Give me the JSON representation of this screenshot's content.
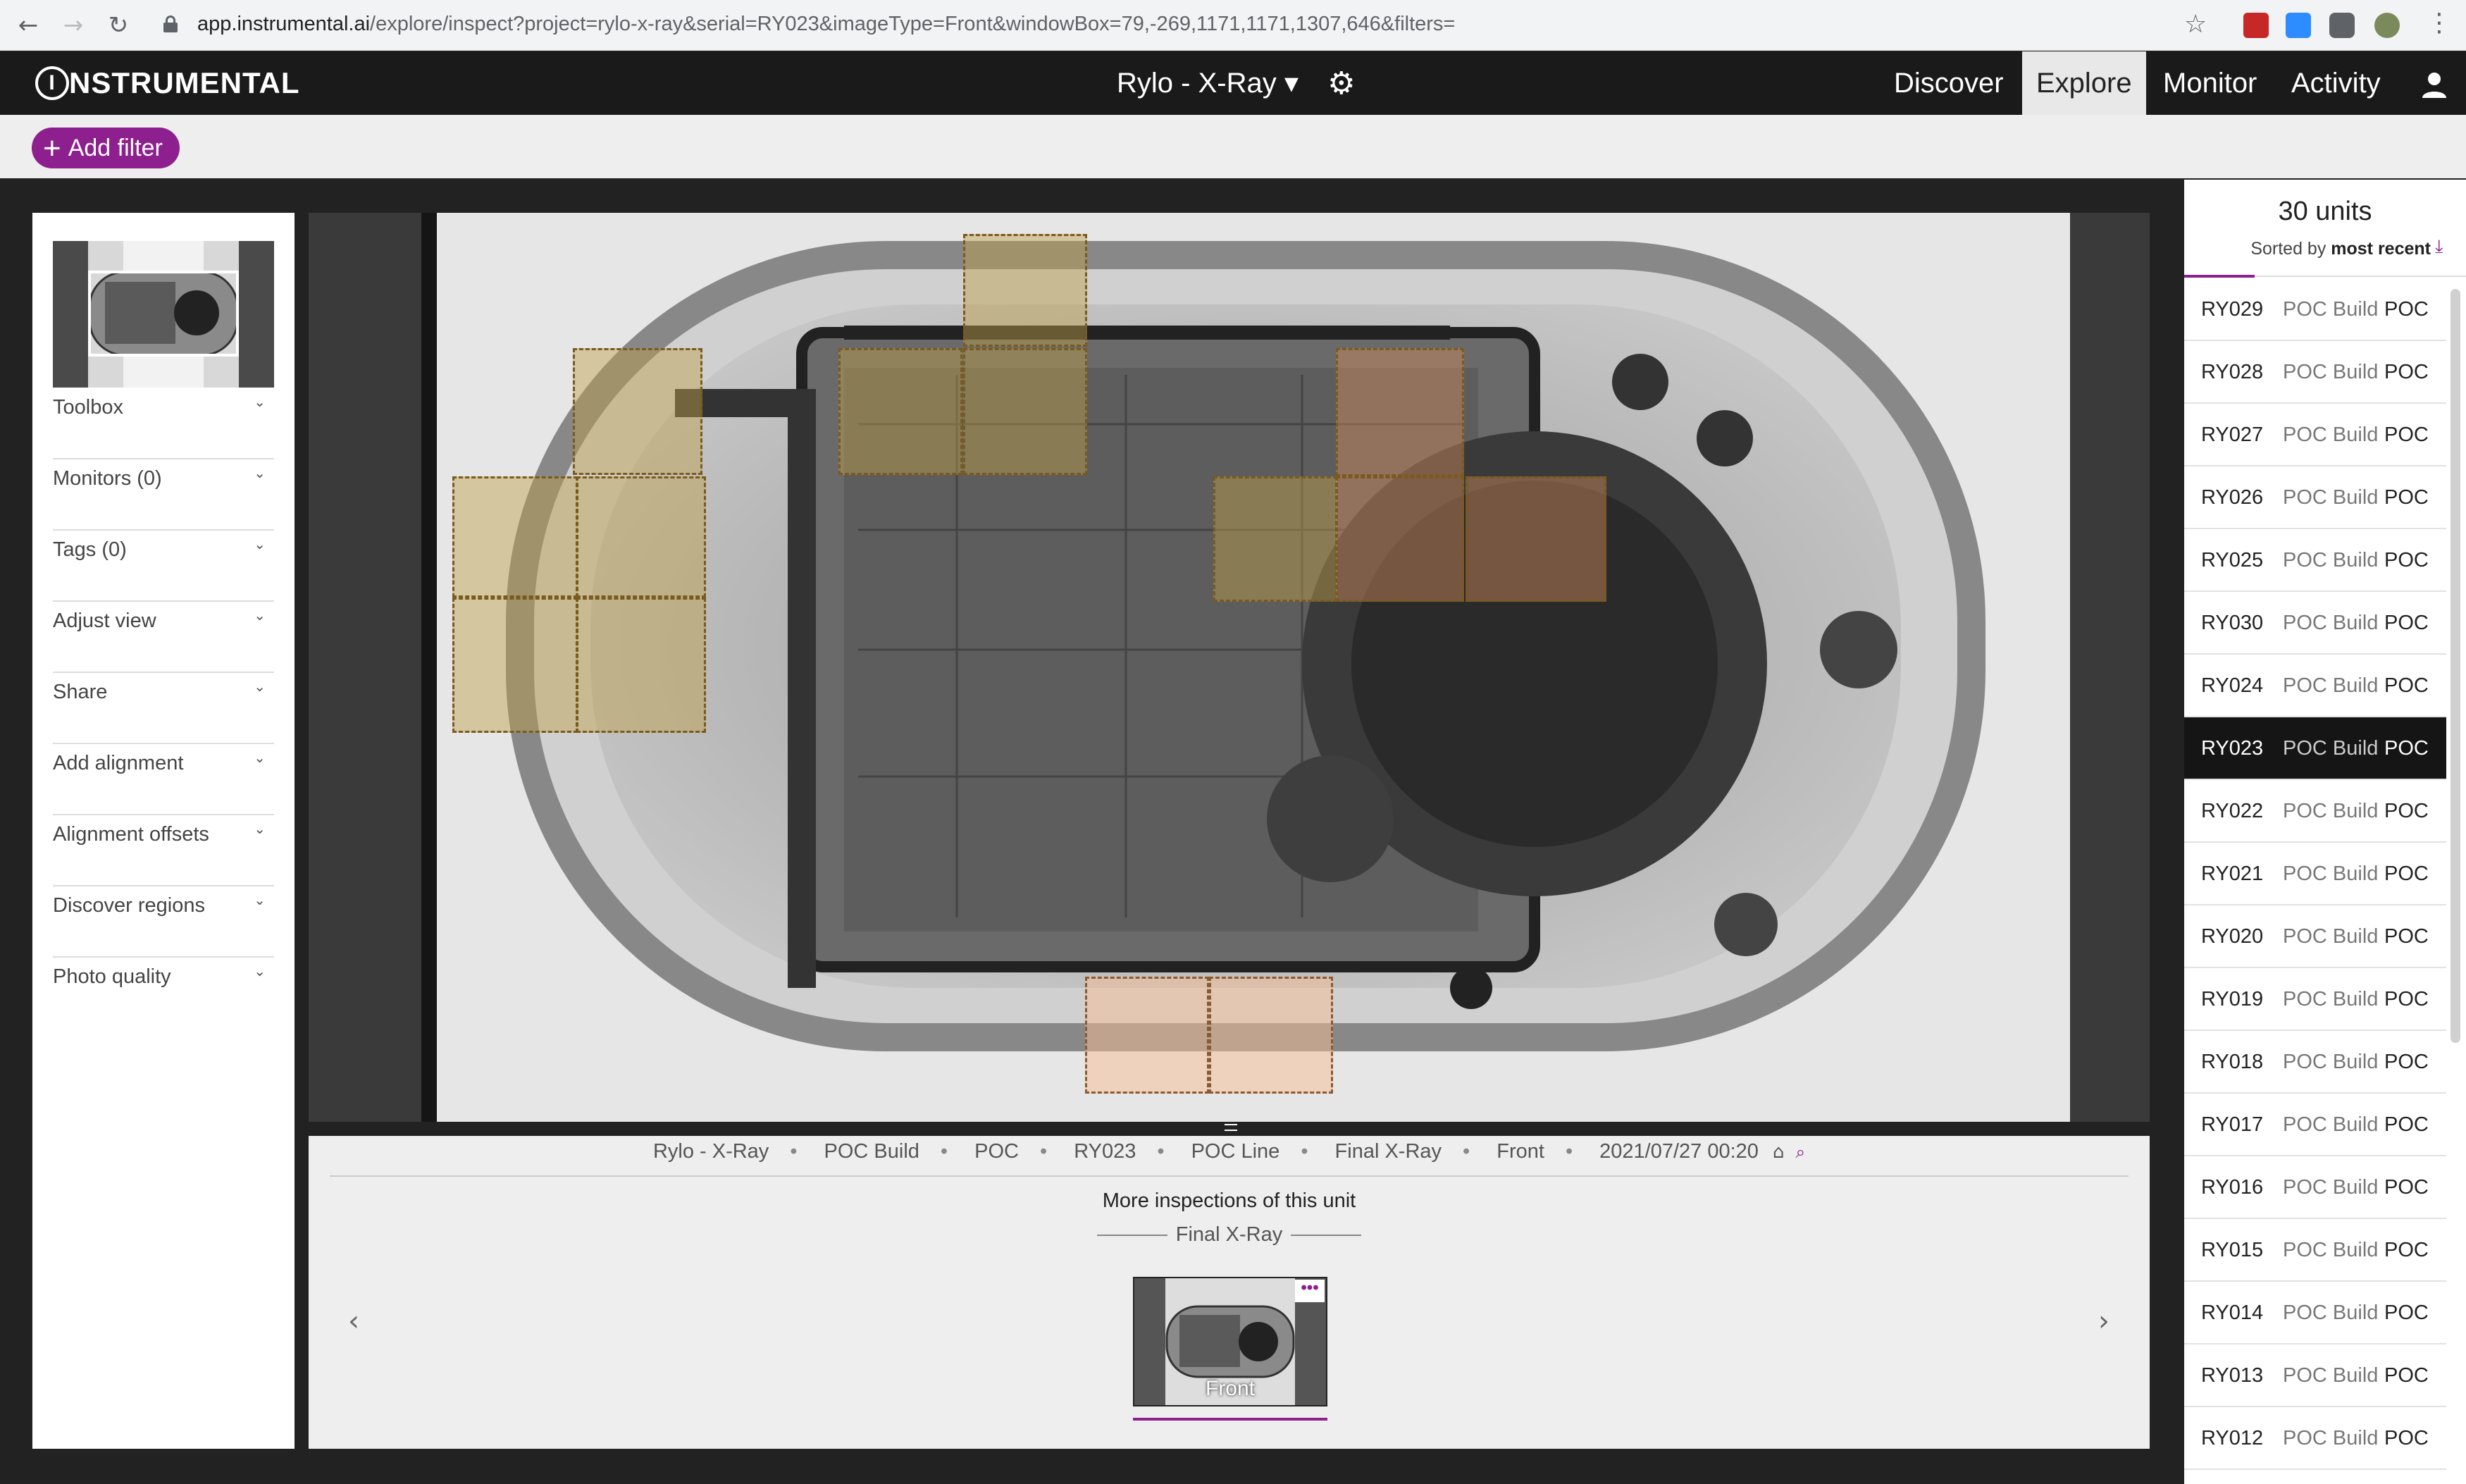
{
  "browser": {
    "url_host": "app.instrumental.ai",
    "url_path": "/explore/inspect?project=rylo-x-ray&serial=RY023&imageType=Front&windowBox=79,-269,1171,1171,1307,646&filters="
  },
  "header": {
    "logo_text": "NSTRUMENTAL",
    "logo_initial": "I",
    "project_selector": "Rylo - X-Ray ▾",
    "nav": [
      {
        "label": "Discover",
        "active": false
      },
      {
        "label": "Explore",
        "active": true
      },
      {
        "label": "Monitor",
        "active": false
      },
      {
        "label": "Activity",
        "active": false
      }
    ],
    "colors": {
      "appbar": "#1a1a1a",
      "accent": "#8e1f8e"
    }
  },
  "filters": {
    "add_label": "Add filter"
  },
  "sidebar": {
    "items": [
      {
        "label": "Toolbox"
      },
      {
        "label": "Monitors (0)"
      },
      {
        "label": "Tags (0)"
      },
      {
        "label": "Adjust view"
      },
      {
        "label": "Share"
      },
      {
        "label": "Add alignment"
      },
      {
        "label": "Alignment offsets"
      },
      {
        "label": "Discover regions"
      },
      {
        "label": "Photo quality"
      }
    ]
  },
  "viewer": {
    "meta": [
      "Rylo - X-Ray",
      "POC Build",
      "POC",
      "RY023",
      "POC Line",
      "Final X-Ray",
      "Front",
      "2021/07/27 00:20"
    ],
    "more_title": "More inspections of this unit",
    "section_label": "Final X-Ray",
    "card_label": "Front",
    "card_more": "•••"
  },
  "units_panel": {
    "title": "30 units",
    "sorted_prefix": "Sorted by ",
    "sorted_value": "most recent",
    "selected": "RY023",
    "rows": [
      {
        "serial": "RY029",
        "build": "POC Build",
        "phase": "POC"
      },
      {
        "serial": "RY028",
        "build": "POC Build",
        "phase": "POC"
      },
      {
        "serial": "RY027",
        "build": "POC Build",
        "phase": "POC"
      },
      {
        "serial": "RY026",
        "build": "POC Build",
        "phase": "POC"
      },
      {
        "serial": "RY025",
        "build": "POC Build",
        "phase": "POC"
      },
      {
        "serial": "RY030",
        "build": "POC Build",
        "phase": "POC"
      },
      {
        "serial": "RY024",
        "build": "POC Build",
        "phase": "POC"
      },
      {
        "serial": "RY023",
        "build": "POC Build",
        "phase": "POC"
      },
      {
        "serial": "RY022",
        "build": "POC Build",
        "phase": "POC"
      },
      {
        "serial": "RY021",
        "build": "POC Build",
        "phase": "POC"
      },
      {
        "serial": "RY020",
        "build": "POC Build",
        "phase": "POC"
      },
      {
        "serial": "RY019",
        "build": "POC Build",
        "phase": "POC"
      },
      {
        "serial": "RY018",
        "build": "POC Build",
        "phase": "POC"
      },
      {
        "serial": "RY017",
        "build": "POC Build",
        "phase": "POC"
      },
      {
        "serial": "RY016",
        "build": "POC Build",
        "phase": "POC"
      },
      {
        "serial": "RY015",
        "build": "POC Build",
        "phase": "POC"
      },
      {
        "serial": "RY014",
        "build": "POC Build",
        "phase": "POC"
      },
      {
        "serial": "RY013",
        "build": "POC Build",
        "phase": "POC"
      },
      {
        "serial": "RY012",
        "build": "POC Build",
        "phase": "POC"
      }
    ]
  }
}
